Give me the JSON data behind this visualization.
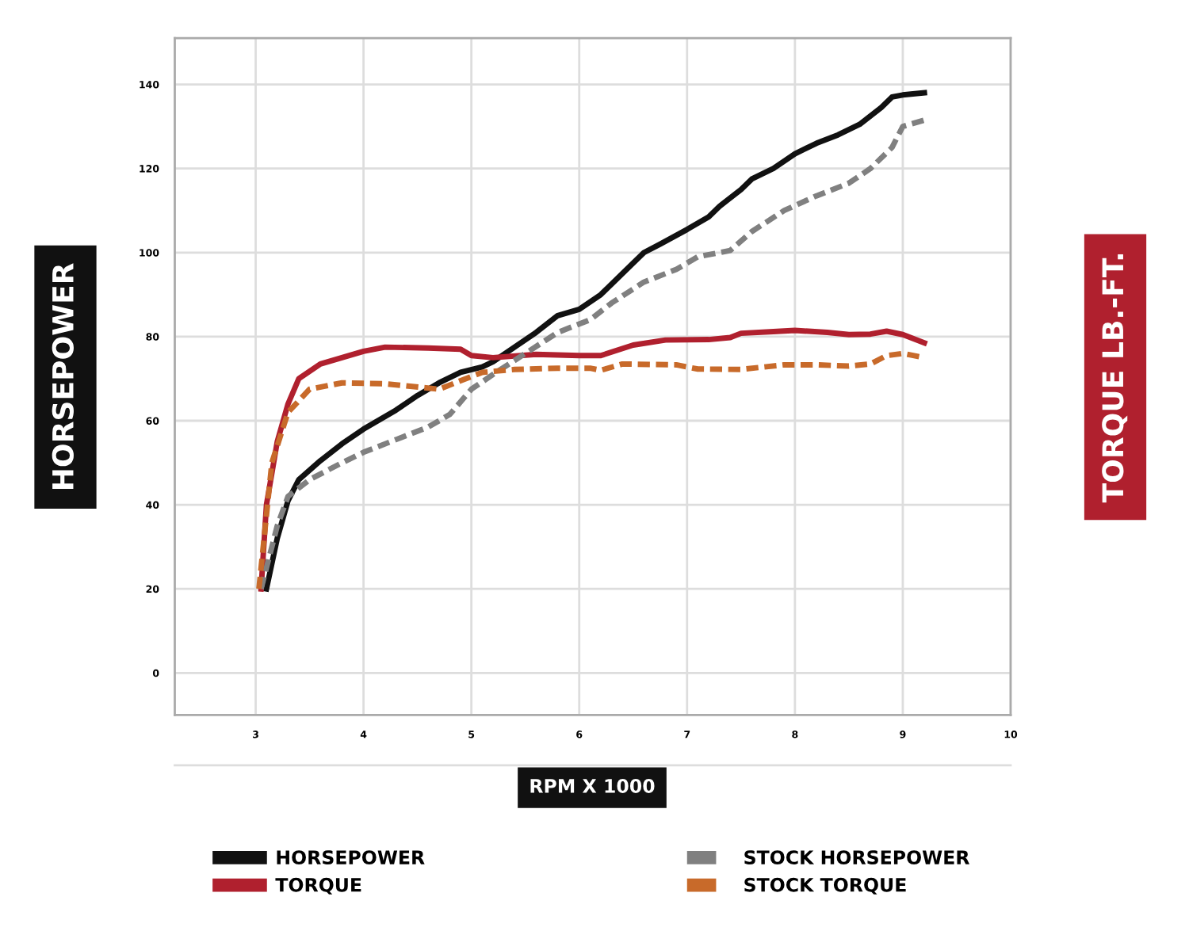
{
  "chart_data": {
    "type": "line",
    "xlabel": "RPM X 1000",
    "ylabel": "HORSEPOWER",
    "y2label": "TORQUE LB.-FT.",
    "xlim": [
      2.25,
      10
    ],
    "xticks": [
      3,
      4,
      5,
      6,
      7,
      8,
      9,
      10
    ],
    "ylim": [
      -10,
      151
    ],
    "yticks": [
      0,
      20,
      40,
      60,
      80,
      100,
      120,
      140
    ],
    "grid": true,
    "legend": "bottom",
    "series": [
      {
        "name": "HORSEPOWER",
        "color": "#111111",
        "line_style": "solid",
        "x": [
          3.1,
          3.2,
          3.3,
          3.4,
          3.6,
          3.8,
          4.0,
          4.3,
          4.5,
          4.7,
          4.9,
          5.1,
          5.2,
          5.4,
          5.6,
          5.8,
          6.0,
          6.2,
          6.4,
          6.6,
          6.75,
          7.0,
          7.2,
          7.3,
          7.5,
          7.6,
          7.8,
          8.0,
          8.2,
          8.4,
          8.6,
          8.8,
          8.9,
          9.0,
          9.2
        ],
        "values": [
          20,
          32,
          41,
          46,
          50.5,
          54.5,
          58,
          62.5,
          66,
          69,
          71.5,
          72.8,
          74,
          77.5,
          81,
          85,
          86.5,
          90,
          95,
          100,
          102,
          105.5,
          108.5,
          111,
          115,
          117.5,
          120,
          123.5,
          126,
          128,
          130.5,
          134.5,
          137,
          137.5,
          138
        ]
      },
      {
        "name": "TORQUE",
        "color": "#b0202e",
        "line_style": "solid",
        "x": [
          3.05,
          3.1,
          3.2,
          3.3,
          3.4,
          3.6,
          4.0,
          4.2,
          4.6,
          4.9,
          5.0,
          5.2,
          5.6,
          6.0,
          6.2,
          6.5,
          6.8,
          7.2,
          7.4,
          7.5,
          7.8,
          8.0,
          8.3,
          8.5,
          8.7,
          8.85,
          9.0,
          9.2
        ],
        "values": [
          20,
          40,
          55,
          64,
          70,
          73.5,
          76.5,
          77.5,
          77.3,
          77,
          75.5,
          75,
          75.8,
          75.5,
          75.5,
          78,
          79.2,
          79.3,
          79.8,
          80.8,
          81.2,
          81.5,
          81,
          80.5,
          80.6,
          81.3,
          80.5,
          78.5
        ]
      },
      {
        "name": "STOCK HORSEPOWER",
        "color": "#808080",
        "line_style": "dashed",
        "x": [
          3.05,
          3.2,
          3.3,
          3.5,
          3.8,
          4.0,
          4.3,
          4.6,
          4.8,
          5.0,
          5.2,
          5.5,
          5.8,
          6.1,
          6.3,
          6.6,
          6.9,
          7.1,
          7.4,
          7.6,
          7.9,
          8.2,
          8.5,
          8.7,
          8.9,
          9.0,
          9.2
        ],
        "values": [
          20,
          35,
          42,
          46,
          50,
          52.5,
          55.5,
          58.5,
          61.5,
          67.5,
          71,
          76,
          81,
          84,
          88,
          93,
          96,
          99,
          100.5,
          105,
          110,
          113.5,
          116.5,
          120,
          125,
          130,
          131.5
        ]
      },
      {
        "name": "STOCK TORQUE",
        "color": "#c86a2a",
        "line_style": "dashed",
        "x": [
          3.03,
          3.15,
          3.3,
          3.5,
          3.8,
          4.2,
          4.7,
          4.9,
          5.1,
          5.4,
          5.8,
          6.1,
          6.2,
          6.4,
          6.9,
          7.1,
          7.5,
          7.9,
          8.2,
          8.5,
          8.7,
          8.85,
          9.0,
          9.2
        ],
        "values": [
          20,
          50,
          62,
          67.5,
          69,
          68.8,
          67.5,
          69.5,
          71.5,
          72.2,
          72.5,
          72.5,
          72,
          73.5,
          73.3,
          72.3,
          72.2,
          73.3,
          73.3,
          73,
          73.5,
          75.5,
          76,
          75
        ]
      }
    ]
  }
}
